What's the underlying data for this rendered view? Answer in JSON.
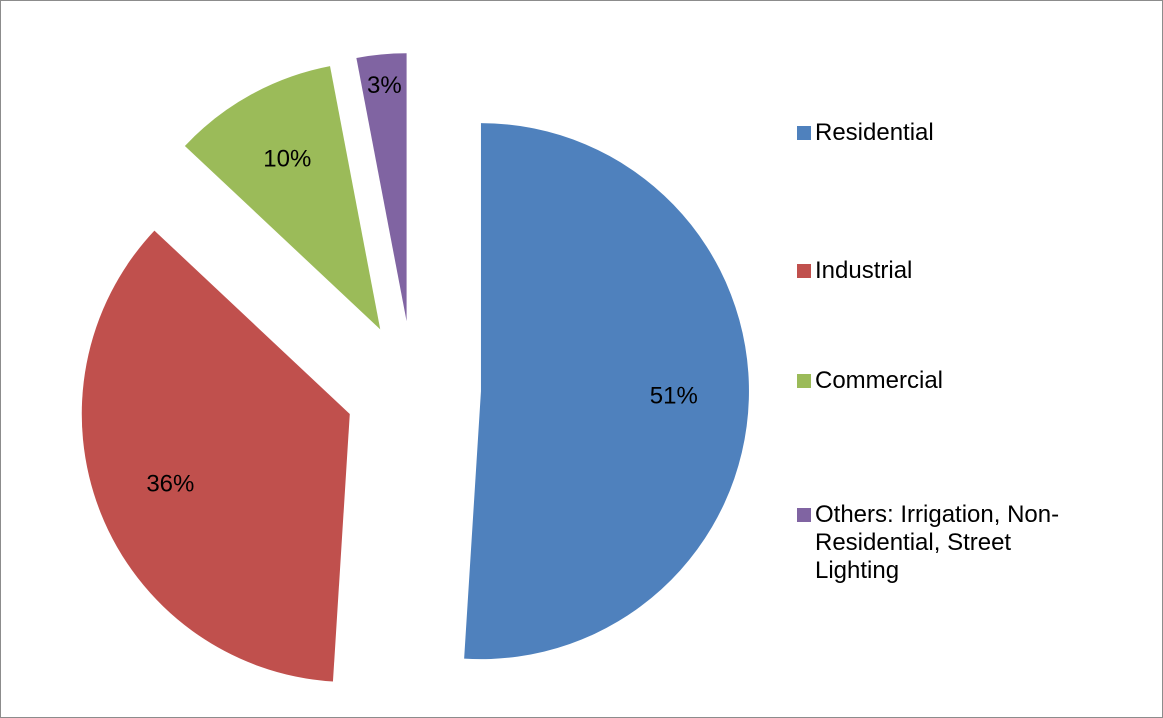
{
  "chart_data": {
    "type": "pie",
    "categories": [
      "Residential",
      "Industrial",
      "Commercial",
      "Others: Irrigation, Non-Residential, Street Lighting"
    ],
    "values": [
      51,
      36,
      10,
      3
    ],
    "value_labels": [
      "51%",
      "36%",
      "10%",
      "3%"
    ],
    "colors": [
      "#4f81bd",
      "#c0504d",
      "#9bbb59",
      "#8064a2"
    ],
    "legend": "right"
  }
}
